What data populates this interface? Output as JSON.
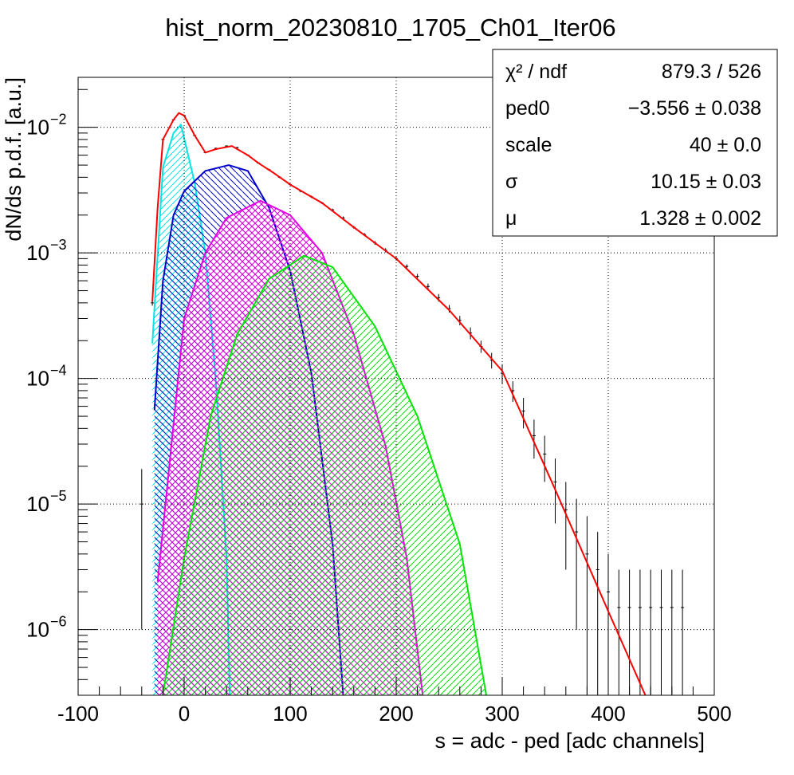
{
  "chart_data": {
    "type": "line",
    "title": "hist_norm_20230810_1705_Ch01_Iter06",
    "x_label": "s = adc - ped [adc channels]",
    "y_label": "dN/ds p.d.f. [a.u.]",
    "xlim": [
      -100,
      500
    ],
    "xticks": [
      -100,
      0,
      100,
      200,
      300,
      400,
      500
    ],
    "ylim": [
      3e-07,
      0.025
    ],
    "log_y": true,
    "grid": true,
    "yticks": [
      {
        "value": 0.01,
        "label": "10",
        "exponent": "−2"
      },
      {
        "value": 0.001,
        "label": "10",
        "exponent": "−3"
      },
      {
        "value": 0.0001,
        "label": "10",
        "exponent": "−4"
      },
      {
        "value": 1e-05,
        "label": "10",
        "exponent": "−5"
      },
      {
        "value": 1e-06,
        "label": "10",
        "exponent": "−6"
      }
    ],
    "stats": [
      {
        "label": "χ² / ndf",
        "value": "879.3 / 526"
      },
      {
        "label": "ped0",
        "value": "−3.556 ± 0.038"
      },
      {
        "label": "scale",
        "value": "40 ± 0.0"
      },
      {
        "label": "σ",
        "value": "10.15 ± 0.03"
      },
      {
        "label": "μ",
        "value": "1.328 ± 0.002"
      }
    ],
    "series": [
      {
        "style": "points",
        "color": "#000000",
        "x": [
          -40,
          -30,
          -20,
          -10,
          0,
          10,
          20,
          30,
          40,
          50,
          60,
          70,
          80,
          90,
          100,
          110,
          120,
          130,
          140,
          150,
          160,
          170,
          180,
          190,
          200,
          210,
          220,
          230,
          240,
          250,
          260,
          270,
          280,
          290,
          300,
          310,
          320,
          330,
          340,
          350,
          360,
          370,
          380,
          390,
          400,
          410,
          420,
          430,
          440,
          450,
          460,
          470
        ],
        "values": [
          1e-05,
          0.0004,
          0.008,
          0.0115,
          0.0124,
          0.0086,
          0.0063,
          0.0068,
          0.0071,
          0.0069,
          0.006,
          0.0052,
          0.0046,
          0.004,
          0.0035,
          0.0031,
          0.0028,
          0.0025,
          0.0022,
          0.0019,
          0.0016,
          0.0014,
          0.0012,
          0.00105,
          0.0009,
          0.00078,
          0.00065,
          0.00054,
          0.00044,
          0.00036,
          0.00029,
          0.00023,
          0.00018,
          0.00014,
          0.00011,
          8e-05,
          5.5e-05,
          3.5e-05,
          2.5e-05,
          1.5e-05,
          9e-06,
          6e-06,
          4e-06,
          3e-06,
          2e-06,
          1.5e-06,
          1.5e-06,
          1.5e-06,
          1.5e-06,
          1.5e-06,
          1.5e-06,
          1.5e-06
        ],
        "errors": [
          9e-06,
          2e-05,
          0.0001,
          0.00012,
          0.00012,
          0.0001,
          9e-05,
          9e-05,
          9e-05,
          9e-05,
          8e-05,
          8e-05,
          7e-05,
          7e-05,
          6e-05,
          6e-05,
          6e-05,
          5e-05,
          5e-05,
          5e-05,
          4e-05,
          4e-05,
          4e-05,
          4e-05,
          3e-05,
          3e-05,
          3e-05,
          3e-05,
          3e-05,
          2.5e-05,
          2.5e-05,
          2.5e-05,
          2e-05,
          2e-05,
          2e-05,
          1.5e-05,
          1.5e-05,
          1.2e-05,
          1e-05,
          8e-06,
          6e-06,
          5e-06,
          4e-06,
          3e-06,
          2e-06,
          1.5e-06,
          1.5e-06,
          1.5e-06,
          1.5e-06,
          1.5e-06,
          1.5e-06,
          1.5e-06
        ]
      },
      {
        "style": "line",
        "color": "#ff0000",
        "x": [
          -30,
          -25,
          -20,
          -10,
          -5,
          0,
          10,
          20,
          30,
          45,
          60,
          70,
          85,
          100,
          130,
          160,
          200,
          250,
          300,
          350,
          400,
          435
        ],
        "values": [
          0.00041,
          0.0023,
          0.008,
          0.0115,
          0.013,
          0.0124,
          0.0086,
          0.0063,
          0.0067,
          0.0071,
          0.006,
          0.0052,
          0.0043,
          0.0035,
          0.0025,
          0.0016,
          0.0009,
          0.00035,
          0.000115,
          1.3e-05,
          1.4e-06,
          3e-07
        ]
      },
      {
        "style": "area",
        "color": "#00e5e5",
        "hatch": "left",
        "x": [
          -30,
          -20,
          -10,
          -3,
          10,
          20,
          30,
          40,
          43
        ],
        "values": [
          0.00019,
          0.0048,
          0.009,
          0.0105,
          0.0036,
          0.001,
          9.3e-05,
          3.7e-06,
          3e-07
        ]
      },
      {
        "style": "area",
        "color": "#0000cc",
        "hatch": "right",
        "x": [
          -28,
          -20,
          -10,
          0,
          20,
          42,
          60,
          80,
          100,
          120,
          140,
          150
        ],
        "values": [
          5.6e-05,
          0.0006,
          0.002,
          0.0031,
          0.0045,
          0.005,
          0.0045,
          0.0023,
          0.00072,
          0.00011,
          4.8e-06,
          3e-07
        ]
      },
      {
        "style": "area",
        "color": "#e500e5",
        "hatch": "cross",
        "x": [
          -25,
          0,
          20,
          40,
          72,
          100,
          130,
          160,
          190,
          210,
          225
        ],
        "values": [
          2.4e-06,
          0.0003,
          0.001,
          0.0019,
          0.0026,
          0.002,
          0.001,
          0.000225,
          2.9e-05,
          3.7e-06,
          3e-07
        ]
      },
      {
        "style": "area",
        "color": "#00e500",
        "hatch": "left",
        "x": [
          -20,
          0,
          25,
          50,
          80,
          113,
          140,
          180,
          220,
          260,
          285
        ],
        "values": [
          3e-07,
          3.7e-06,
          5e-05,
          0.000225,
          0.00062,
          0.00095,
          0.00077,
          0.00026,
          5e-05,
          4.8e-06,
          3e-07
        ]
      }
    ]
  }
}
